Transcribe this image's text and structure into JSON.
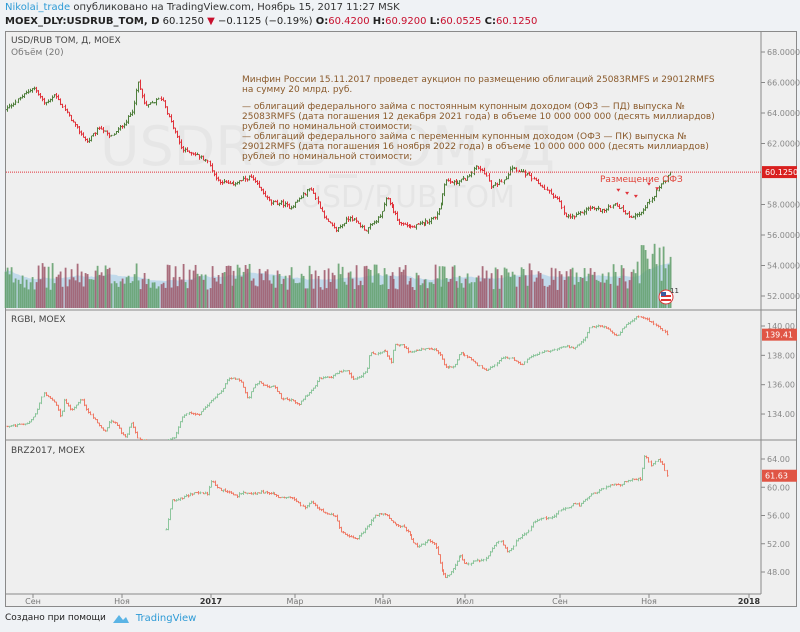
{
  "header": {
    "author": "Nikolai_trade",
    "published": "опубликовано на TradingView.com, Ноябрь 15, 2017 11:27 MSK",
    "symbol": "MOEX_DLY:USDRUB_TOM, D",
    "last": "60.1250",
    "change": "−0.1125 (−0.19%)",
    "o_label": "O:",
    "o": "60.4200",
    "h_label": "H:",
    "h": "60.9200",
    "l_label": "L:",
    "l": "60.0525",
    "c_label": "C:",
    "c": "60.1250"
  },
  "panes": {
    "main_title": "USD/RUB TOM, Д, MOEX",
    "volume_title": "Объём (20)",
    "rgbi_title": "RGBI, MOEX",
    "brz_title": "BRZ2017, MOEX",
    "watermark": "USDRUB_TOM, Д",
    "watermark2": "USD/RUB TOM"
  },
  "annotation": {
    "p1": "Минфин России 15.11.2017 проведет аукцион по размещению облигаций 25083RMFS и 29012RMFS на сумму 20 млрд. руб.",
    "p2": "— облигаций федерального займа с постоянным купонным доходом (ОФЗ — ПД) выпуска № 25083RMFS (дата погашения 12 декабря 2021 года) в объеме 10 000 000 000 (десять миллиардов) рублей по номинальной стоимости;",
    "p3": "— облигаций федерального займа с переменным купонным доходом (ОФЗ — ПК) выпуска № 29012RMFS (дата погашения 16 ноября 2022 года) в объеме 10 000 000 000 (десять миллиардов) рублей по номинальной стоимости;",
    "event_label": "Размещение ОФЗ",
    "event_badge": "11"
  },
  "colors": {
    "up": "#4f7f3c",
    "down": "#e0323a",
    "up_light": "#8cc59c",
    "down_light": "#ef7a66",
    "price_line": "#e0323a",
    "label_bg": "#d9201f",
    "label_bg2": "#e05545",
    "vol_up": "#5f9e68",
    "vol_down": "#9c5566",
    "vol_ma": "#b5d5ea"
  },
  "chart_data": [
    {
      "type": "ohlc",
      "name": "USD/RUB TOM",
      "x_unit": "days since 2016-09-01",
      "ylim": [
        51,
        69
      ],
      "yticks": [
        52,
        54,
        56,
        58,
        62,
        64,
        66,
        68
      ],
      "last_value": "60.1250",
      "closes": [
        [
          -19,
          64.2
        ],
        [
          0,
          65.7
        ],
        [
          8,
          64.6
        ],
        [
          15,
          65.2
        ],
        [
          29,
          63.1
        ],
        [
          37,
          62.1
        ],
        [
          46,
          63.1
        ],
        [
          53,
          62.4
        ],
        [
          64,
          63.5
        ],
        [
          68,
          64.2
        ],
        [
          72,
          66.0
        ],
        [
          77,
          64.4
        ],
        [
          88,
          65.0
        ],
        [
          93,
          63.7
        ],
        [
          102,
          61.6
        ],
        [
          109,
          61.4
        ],
        [
          119,
          60.9
        ],
        [
          126,
          59.6
        ],
        [
          136,
          59.3
        ],
        [
          150,
          59.8
        ],
        [
          156,
          59.1
        ],
        [
          164,
          58.1
        ],
        [
          171,
          58.1
        ],
        [
          178,
          57.8
        ],
        [
          192,
          59.1
        ],
        [
          202,
          57.0
        ],
        [
          209,
          56.3
        ],
        [
          219,
          57.2
        ],
        [
          230,
          56.3
        ],
        [
          240,
          57.2
        ],
        [
          245,
          58.5
        ],
        [
          254,
          56.8
        ],
        [
          264,
          56.5
        ],
        [
          275,
          56.9
        ],
        [
          281,
          57.2
        ],
        [
          285,
          58.1
        ],
        [
          288,
          59.6
        ],
        [
          295,
          59.4
        ],
        [
          306,
          59.8
        ],
        [
          309,
          60.5
        ],
        [
          316,
          60.1
        ],
        [
          320,
          59.1
        ],
        [
          330,
          59.8
        ],
        [
          333,
          60.5
        ],
        [
          344,
          59.9
        ],
        [
          354,
          59.1
        ],
        [
          364,
          58.3
        ],
        [
          368,
          57.2
        ],
        [
          375,
          57.2
        ],
        [
          385,
          57.8
        ],
        [
          396,
          57.6
        ],
        [
          402,
          58.1
        ],
        [
          409,
          57.5
        ],
        [
          413,
          57.2
        ],
        [
          420,
          57.5
        ],
        [
          427,
          58.3
        ],
        [
          434,
          59.4
        ],
        [
          440,
          60.125
        ]
      ],
      "volume_ma_period": 20
    },
    {
      "type": "ohlc",
      "name": "RGBI",
      "x_unit": "days since 2016-09-01",
      "ylim": [
        131.8,
        141
      ],
      "yticks": [
        134,
        136,
        138,
        140
      ],
      "last_value": "139.41",
      "closes": [
        [
          -18,
          133.18
        ],
        [
          -9,
          133.25
        ],
        [
          -2,
          133.46
        ],
        [
          3,
          134.27
        ],
        [
          7,
          135.5
        ],
        [
          12,
          134.96
        ],
        [
          15,
          134.82
        ],
        [
          19,
          133.73
        ],
        [
          21,
          134.96
        ],
        [
          26,
          134.27
        ],
        [
          30,
          134.61
        ],
        [
          33,
          135.09
        ],
        [
          37,
          134.27
        ],
        [
          41,
          133.73
        ],
        [
          46,
          133.11
        ],
        [
          49,
          132.77
        ],
        [
          53,
          133.59
        ],
        [
          58,
          133.25
        ],
        [
          60,
          132.77
        ],
        [
          64,
          132.43
        ],
        [
          67,
          133.39
        ],
        [
          69,
          133.05
        ],
        [
          72,
          132.23
        ],
        [
          76,
          132.23
        ],
        [
          84,
          131.8
        ],
        [
          91,
          132.1
        ],
        [
          97,
          132.43
        ],
        [
          102,
          133.8
        ],
        [
          106,
          134.07
        ],
        [
          113,
          133.93
        ],
        [
          115,
          134.14
        ],
        [
          122,
          134.96
        ],
        [
          129,
          135.5
        ],
        [
          134,
          136.46
        ],
        [
          138,
          136.46
        ],
        [
          143,
          136.18
        ],
        [
          148,
          134.96
        ],
        [
          152,
          135.98
        ],
        [
          156,
          136.18
        ],
        [
          162,
          135.77
        ],
        [
          166,
          135.98
        ],
        [
          171,
          135.09
        ],
        [
          178,
          134.96
        ],
        [
          183,
          134.61
        ],
        [
          187,
          135.09
        ],
        [
          194,
          135.84
        ],
        [
          198,
          136.46
        ],
        [
          205,
          136.46
        ],
        [
          210,
          136.8
        ],
        [
          217,
          137.0
        ],
        [
          221,
          136.32
        ],
        [
          226,
          136.52
        ],
        [
          231,
          137.0
        ],
        [
          233,
          138.16
        ],
        [
          237,
          138.02
        ],
        [
          240,
          138.23
        ],
        [
          243,
          138.36
        ],
        [
          248,
          137.55
        ],
        [
          250,
          138.7
        ],
        [
          257,
          138.7
        ],
        [
          261,
          138.23
        ],
        [
          268,
          138.36
        ],
        [
          275,
          138.43
        ],
        [
          281,
          138.36
        ],
        [
          285,
          138.02
        ],
        [
          288,
          137.14
        ],
        [
          295,
          137.2
        ],
        [
          299,
          138.16
        ],
        [
          306,
          137.82
        ],
        [
          309,
          137.48
        ],
        [
          316,
          137.0
        ],
        [
          323,
          137.34
        ],
        [
          326,
          137.82
        ],
        [
          333,
          137.82
        ],
        [
          340,
          137.34
        ],
        [
          344,
          137.82
        ],
        [
          354,
          138.23
        ],
        [
          361,
          138.36
        ],
        [
          368,
          138.64
        ],
        [
          375,
          138.5
        ],
        [
          382,
          139.18
        ],
        [
          385,
          139.86
        ],
        [
          389,
          140.0
        ],
        [
          396,
          139.93
        ],
        [
          401,
          139.52
        ],
        [
          404,
          139.32
        ],
        [
          410,
          140.07
        ],
        [
          413,
          140.27
        ],
        [
          417,
          140.61
        ],
        [
          420,
          140.61
        ],
        [
          423,
          140.55
        ],
        [
          427,
          140.27
        ],
        [
          430,
          140.07
        ],
        [
          434,
          139.73
        ],
        [
          437,
          139.41
        ]
      ]
    },
    {
      "type": "ohlc",
      "name": "BRZ2017",
      "x_unit": "days since 2016-09-01",
      "ylim": [
        45.5,
        66.5
      ],
      "yticks": [
        48,
        52,
        56,
        60,
        64
      ],
      "last_value": "61.63",
      "closes": [
        [
          91,
          53.95
        ],
        [
          95,
          58.19
        ],
        [
          98,
          58.19
        ],
        [
          105,
          58.76
        ],
        [
          112,
          59.33
        ],
        [
          119,
          59.04
        ],
        [
          122,
          61.03
        ],
        [
          126,
          59.89
        ],
        [
          133,
          59.33
        ],
        [
          140,
          58.76
        ],
        [
          143,
          59.19
        ],
        [
          150,
          59.04
        ],
        [
          157,
          59.33
        ],
        [
          164,
          59.19
        ],
        [
          171,
          58.48
        ],
        [
          178,
          58.62
        ],
        [
          185,
          57.49
        ],
        [
          188,
          57.06
        ],
        [
          192,
          58.05
        ],
        [
          198,
          56.78
        ],
        [
          209,
          55.79
        ],
        [
          212,
          53.81
        ],
        [
          216,
          53.24
        ],
        [
          223,
          52.67
        ],
        [
          226,
          53.1
        ],
        [
          230,
          54.23
        ],
        [
          237,
          56.07
        ],
        [
          243,
          56.35
        ],
        [
          247,
          55.36
        ],
        [
          250,
          54.94
        ],
        [
          257,
          54.37
        ],
        [
          261,
          53.52
        ],
        [
          264,
          52.11
        ],
        [
          268,
          51.54
        ],
        [
          275,
          52.53
        ],
        [
          281,
          51.82
        ],
        [
          285,
          48.57
        ],
        [
          288,
          47.15
        ],
        [
          292,
          47.86
        ],
        [
          299,
          50.41
        ],
        [
          302,
          49.27
        ],
        [
          306,
          48.99
        ],
        [
          309,
          49.7
        ],
        [
          316,
          49.7
        ],
        [
          323,
          52.25
        ],
        [
          326,
          52.39
        ],
        [
          330,
          50.97
        ],
        [
          333,
          51.12
        ],
        [
          337,
          52.67
        ],
        [
          344,
          53.66
        ],
        [
          347,
          55.08
        ],
        [
          354,
          55.65
        ],
        [
          361,
          55.79
        ],
        [
          364,
          56.78
        ],
        [
          370,
          57.06
        ],
        [
          375,
          57.77
        ],
        [
          378,
          57.35
        ],
        [
          385,
          58.76
        ],
        [
          392,
          59.61
        ],
        [
          399,
          60.32
        ],
        [
          406,
          60.32
        ],
        [
          411,
          61.0
        ],
        [
          420,
          61.2
        ],
        [
          423,
          64.57
        ],
        [
          427,
          63.01
        ],
        [
          431,
          63.86
        ],
        [
          434,
          63.15
        ],
        [
          437,
          61.63
        ]
      ]
    }
  ],
  "time_axis": {
    "ticks": [
      {
        "label": "Сен",
        "day": 0,
        "bold": false
      },
      {
        "label": "Ноя",
        "day": 61,
        "bold": false
      },
      {
        "label": "2017",
        "day": 122,
        "bold": true
      },
      {
        "label": "Мар",
        "day": 181,
        "bold": false
      },
      {
        "label": "Май",
        "day": 242,
        "bold": false
      },
      {
        "label": "Июл",
        "day": 303,
        "bold": false
      },
      {
        "label": "Сен",
        "day": 365,
        "bold": false
      },
      {
        "label": "Ноя",
        "day": 426,
        "bold": false
      },
      {
        "label": "2018",
        "day": 487,
        "bold": true
      }
    ]
  },
  "footer": {
    "created_with": "Создано при помощи",
    "brand": "TradingView"
  }
}
